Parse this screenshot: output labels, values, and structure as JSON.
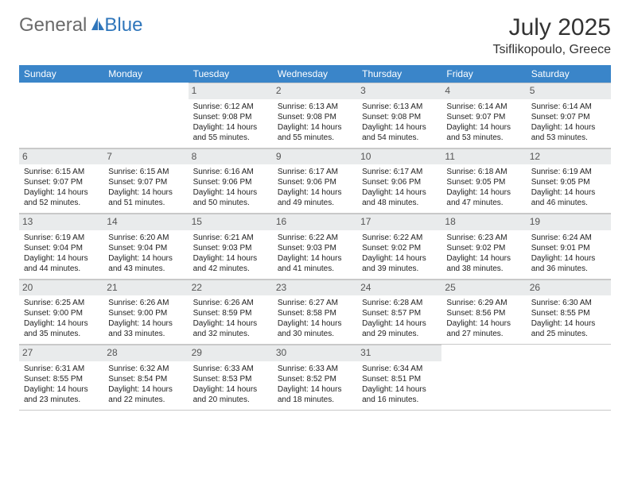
{
  "brand": {
    "general": "General",
    "blue": "Blue"
  },
  "title": "July 2025",
  "location": "Tsiflikopoulo, Greece",
  "colors": {
    "header_bg": "#3a85c9",
    "header_text": "#ffffff",
    "daynum_bg": "#e9ebec",
    "logo_blue": "#2f76bb",
    "logo_gray": "#6a6a6a"
  },
  "day_headers": [
    "Sunday",
    "Monday",
    "Tuesday",
    "Wednesday",
    "Thursday",
    "Friday",
    "Saturday"
  ],
  "weeks": [
    [
      null,
      null,
      {
        "n": "1",
        "sr": "Sunrise: 6:12 AM",
        "ss": "Sunset: 9:08 PM",
        "dl": "Daylight: 14 hours and 55 minutes."
      },
      {
        "n": "2",
        "sr": "Sunrise: 6:13 AM",
        "ss": "Sunset: 9:08 PM",
        "dl": "Daylight: 14 hours and 55 minutes."
      },
      {
        "n": "3",
        "sr": "Sunrise: 6:13 AM",
        "ss": "Sunset: 9:08 PM",
        "dl": "Daylight: 14 hours and 54 minutes."
      },
      {
        "n": "4",
        "sr": "Sunrise: 6:14 AM",
        "ss": "Sunset: 9:07 PM",
        "dl": "Daylight: 14 hours and 53 minutes."
      },
      {
        "n": "5",
        "sr": "Sunrise: 6:14 AM",
        "ss": "Sunset: 9:07 PM",
        "dl": "Daylight: 14 hours and 53 minutes."
      }
    ],
    [
      {
        "n": "6",
        "sr": "Sunrise: 6:15 AM",
        "ss": "Sunset: 9:07 PM",
        "dl": "Daylight: 14 hours and 52 minutes."
      },
      {
        "n": "7",
        "sr": "Sunrise: 6:15 AM",
        "ss": "Sunset: 9:07 PM",
        "dl": "Daylight: 14 hours and 51 minutes."
      },
      {
        "n": "8",
        "sr": "Sunrise: 6:16 AM",
        "ss": "Sunset: 9:06 PM",
        "dl": "Daylight: 14 hours and 50 minutes."
      },
      {
        "n": "9",
        "sr": "Sunrise: 6:17 AM",
        "ss": "Sunset: 9:06 PM",
        "dl": "Daylight: 14 hours and 49 minutes."
      },
      {
        "n": "10",
        "sr": "Sunrise: 6:17 AM",
        "ss": "Sunset: 9:06 PM",
        "dl": "Daylight: 14 hours and 48 minutes."
      },
      {
        "n": "11",
        "sr": "Sunrise: 6:18 AM",
        "ss": "Sunset: 9:05 PM",
        "dl": "Daylight: 14 hours and 47 minutes."
      },
      {
        "n": "12",
        "sr": "Sunrise: 6:19 AM",
        "ss": "Sunset: 9:05 PM",
        "dl": "Daylight: 14 hours and 46 minutes."
      }
    ],
    [
      {
        "n": "13",
        "sr": "Sunrise: 6:19 AM",
        "ss": "Sunset: 9:04 PM",
        "dl": "Daylight: 14 hours and 44 minutes."
      },
      {
        "n": "14",
        "sr": "Sunrise: 6:20 AM",
        "ss": "Sunset: 9:04 PM",
        "dl": "Daylight: 14 hours and 43 minutes."
      },
      {
        "n": "15",
        "sr": "Sunrise: 6:21 AM",
        "ss": "Sunset: 9:03 PM",
        "dl": "Daylight: 14 hours and 42 minutes."
      },
      {
        "n": "16",
        "sr": "Sunrise: 6:22 AM",
        "ss": "Sunset: 9:03 PM",
        "dl": "Daylight: 14 hours and 41 minutes."
      },
      {
        "n": "17",
        "sr": "Sunrise: 6:22 AM",
        "ss": "Sunset: 9:02 PM",
        "dl": "Daylight: 14 hours and 39 minutes."
      },
      {
        "n": "18",
        "sr": "Sunrise: 6:23 AM",
        "ss": "Sunset: 9:02 PM",
        "dl": "Daylight: 14 hours and 38 minutes."
      },
      {
        "n": "19",
        "sr": "Sunrise: 6:24 AM",
        "ss": "Sunset: 9:01 PM",
        "dl": "Daylight: 14 hours and 36 minutes."
      }
    ],
    [
      {
        "n": "20",
        "sr": "Sunrise: 6:25 AM",
        "ss": "Sunset: 9:00 PM",
        "dl": "Daylight: 14 hours and 35 minutes."
      },
      {
        "n": "21",
        "sr": "Sunrise: 6:26 AM",
        "ss": "Sunset: 9:00 PM",
        "dl": "Daylight: 14 hours and 33 minutes."
      },
      {
        "n": "22",
        "sr": "Sunrise: 6:26 AM",
        "ss": "Sunset: 8:59 PM",
        "dl": "Daylight: 14 hours and 32 minutes."
      },
      {
        "n": "23",
        "sr": "Sunrise: 6:27 AM",
        "ss": "Sunset: 8:58 PM",
        "dl": "Daylight: 14 hours and 30 minutes."
      },
      {
        "n": "24",
        "sr": "Sunrise: 6:28 AM",
        "ss": "Sunset: 8:57 PM",
        "dl": "Daylight: 14 hours and 29 minutes."
      },
      {
        "n": "25",
        "sr": "Sunrise: 6:29 AM",
        "ss": "Sunset: 8:56 PM",
        "dl": "Daylight: 14 hours and 27 minutes."
      },
      {
        "n": "26",
        "sr": "Sunrise: 6:30 AM",
        "ss": "Sunset: 8:55 PM",
        "dl": "Daylight: 14 hours and 25 minutes."
      }
    ],
    [
      {
        "n": "27",
        "sr": "Sunrise: 6:31 AM",
        "ss": "Sunset: 8:55 PM",
        "dl": "Daylight: 14 hours and 23 minutes."
      },
      {
        "n": "28",
        "sr": "Sunrise: 6:32 AM",
        "ss": "Sunset: 8:54 PM",
        "dl": "Daylight: 14 hours and 22 minutes."
      },
      {
        "n": "29",
        "sr": "Sunrise: 6:33 AM",
        "ss": "Sunset: 8:53 PM",
        "dl": "Daylight: 14 hours and 20 minutes."
      },
      {
        "n": "30",
        "sr": "Sunrise: 6:33 AM",
        "ss": "Sunset: 8:52 PM",
        "dl": "Daylight: 14 hours and 18 minutes."
      },
      {
        "n": "31",
        "sr": "Sunrise: 6:34 AM",
        "ss": "Sunset: 8:51 PM",
        "dl": "Daylight: 14 hours and 16 minutes."
      },
      null,
      null
    ]
  ]
}
